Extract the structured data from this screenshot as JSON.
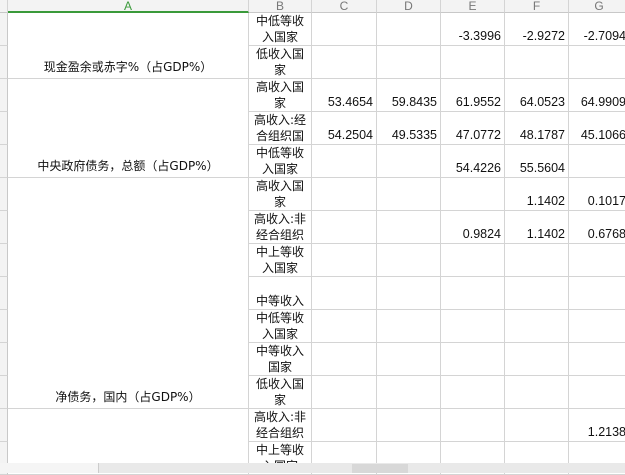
{
  "columns": [
    "A",
    "B",
    "C",
    "D",
    "E",
    "F",
    "G"
  ],
  "selected_column": "A",
  "indicators": [
    {
      "label": "现金盈余或赤字%（占GDP%）",
      "row_start": 1,
      "row_span": 2
    },
    {
      "label": "中央政府债务，总额（占GDP%）",
      "row_start": 3,
      "row_span": 3
    },
    {
      "label": "净债务，国内（占GDP%）",
      "row_start": 6,
      "row_span": 7
    },
    {
      "label": "",
      "row_start": 13,
      "row_span": 2
    }
  ],
  "rows": [
    {
      "group": "中低等收入国家",
      "values": [
        "",
        "",
        "-3.3996",
        "-2.9272",
        "-2.7094"
      ]
    },
    {
      "group": "低收入国家",
      "values": [
        "",
        "",
        "",
        "",
        ""
      ]
    },
    {
      "group": "高收入国家",
      "values": [
        "53.4654",
        "59.8435",
        "61.9552",
        "64.0523",
        "64.9909"
      ]
    },
    {
      "group": "高收入:经合组织国",
      "values": [
        "54.2504",
        "49.5335",
        "47.0772",
        "48.1787",
        "45.1066"
      ]
    },
    {
      "group": "中低等收入国家",
      "values": [
        "",
        "",
        "54.4226",
        "55.5604",
        ""
      ]
    },
    {
      "group": "高收入国家",
      "values": [
        "",
        "",
        "",
        "1.1402",
        "0.1017"
      ]
    },
    {
      "group": "高收入:非经合组织",
      "values": [
        "",
        "",
        "0.9824",
        "1.1402",
        "0.6768"
      ]
    },
    {
      "group": "中上等收入国家",
      "values": [
        "",
        "",
        "",
        "",
        ""
      ]
    },
    {
      "group": "中等收入",
      "values": [
        "",
        "",
        "",
        "",
        ""
      ]
    },
    {
      "group": "中低等收入国家",
      "values": [
        "",
        "",
        "",
        "",
        ""
      ]
    },
    {
      "group": "中等收入国家",
      "values": [
        "",
        "",
        "",
        "",
        ""
      ]
    },
    {
      "group": "低收入国家",
      "values": [
        "",
        "",
        "",
        "",
        ""
      ]
    },
    {
      "group": "高收入:非经合组织",
      "values": [
        "",
        "",
        "",
        "",
        "1.2138"
      ]
    },
    {
      "group": "中上等收入国家",
      "values": [
        "",
        "",
        "",
        "",
        ""
      ]
    }
  ]
}
